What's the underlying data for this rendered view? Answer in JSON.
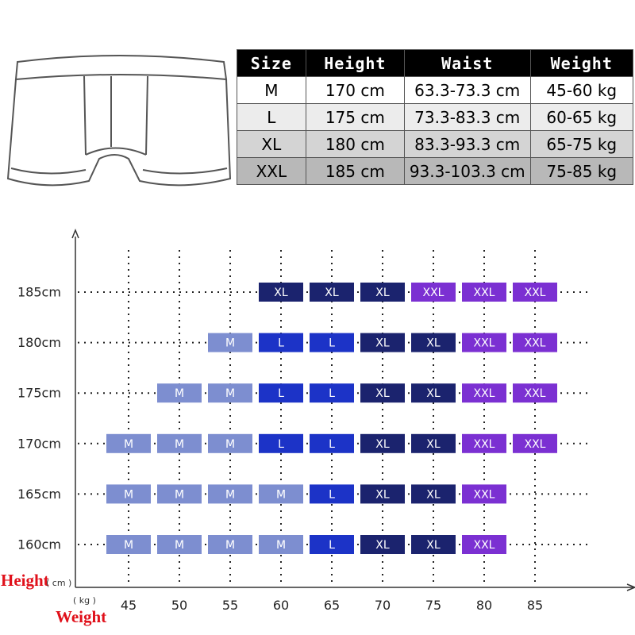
{
  "table": {
    "header": [
      "Size",
      "Height",
      "Waist",
      "Weight"
    ],
    "rows": [
      [
        "M",
        "170 cm",
        "63.3-73.3 cm",
        "45-60 kg"
      ],
      [
        "L",
        "175 cm",
        "73.3-83.3 cm",
        "60-65 kg"
      ],
      [
        "XL",
        "180 cm",
        "83.3-93.3 cm",
        "65-75 kg"
      ],
      [
        "XXL",
        "185 cm",
        "93.3-103.3 cm",
        "75-85 kg"
      ]
    ],
    "row_colors": [
      "#ffffff",
      "#ececec",
      "#d4d4d4",
      "#b8b8b8"
    ]
  },
  "grid": {
    "height_label": "Height",
    "height_unit": "( cm )",
    "weight_unit": "( kg )",
    "weight_label": "Weight",
    "columns": [
      "45",
      "50",
      "55",
      "60",
      "65",
      "70",
      "75",
      "80",
      "85"
    ],
    "rows": [
      {
        "label": "185cm",
        "cells": [
          null,
          null,
          null,
          "XL",
          "XL",
          "XL",
          "XXL",
          "XXL",
          "XXL"
        ]
      },
      {
        "label": "180cm",
        "cells": [
          null,
          null,
          "M",
          "L",
          "L",
          "XL",
          "XL",
          "XXL",
          "XXL"
        ]
      },
      {
        "label": "175cm",
        "cells": [
          null,
          "M",
          "M",
          "L",
          "L",
          "XL",
          "XL",
          "XXL",
          "XXL"
        ]
      },
      {
        "label": "170cm",
        "cells": [
          "M",
          "M",
          "M",
          "L",
          "L",
          "XL",
          "XL",
          "XXL",
          "XXL"
        ]
      },
      {
        "label": "165cm",
        "cells": [
          "M",
          "M",
          "M",
          "M",
          "L",
          "XL",
          "XL",
          "XXL",
          null
        ]
      },
      {
        "label": "160cm",
        "cells": [
          "M",
          "M",
          "M",
          "M",
          "L",
          "XL",
          "XL",
          "XXL",
          null
        ]
      }
    ],
    "cell_colors": {
      "M": "#7d8ed0",
      "L": "#1c33c7",
      "XL": "#1b236e",
      "XXL": "#7b30d2"
    }
  }
}
